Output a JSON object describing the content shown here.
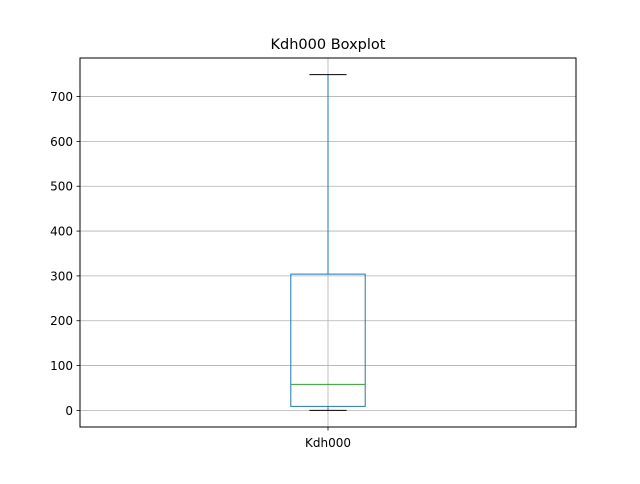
{
  "chart_data": {
    "type": "boxplot",
    "title": "Kdh000 Boxplot",
    "xlabel": "",
    "ylabel": "",
    "categories": [
      "Kdh000"
    ],
    "series": [
      {
        "name": "Kdh000",
        "whisker_low": 0,
        "q1": 9,
        "median": 58,
        "q3": 304,
        "whisker_high": 749
      }
    ],
    "ylim": [
      -37,
      786
    ],
    "yticks": [
      0,
      100,
      200,
      300,
      400,
      500,
      600,
      700
    ],
    "grid": true,
    "colors": {
      "box": "#1f77b4",
      "median": "#2ca02c",
      "whisker": "#1f77b4",
      "cap": "#000000",
      "grid": "#b0b0b0",
      "axes": "#000000"
    }
  }
}
